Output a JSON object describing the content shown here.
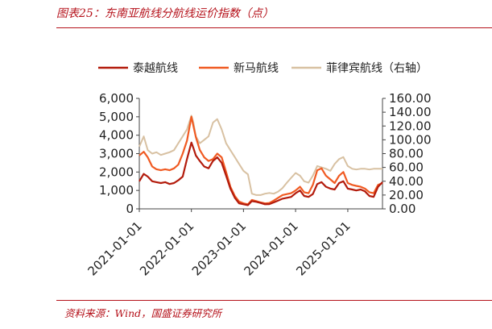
{
  "figure": {
    "title": "图表25：东南亚航线分航线运价指数（点）",
    "source": "资料来源：Wind，国盛证券研究所"
  },
  "chart_data": {
    "type": "line",
    "x_tick_labels": [
      "2021-01-01",
      "2022-01-01",
      "2023-01-01",
      "2024-01-01",
      "2025-01-01"
    ],
    "xlim": [
      "2021-01-01",
      "2025-09-01"
    ],
    "ylim_left": [
      0,
      6000
    ],
    "yticks_left": [
      "6,000",
      "5,000",
      "4,000",
      "3,000",
      "2,000",
      "1,000",
      "0"
    ],
    "ylim_right": [
      0,
      160
    ],
    "yticks_right": [
      "160.00",
      "140.00",
      "120.00",
      "100.00",
      "80.00",
      "60.00",
      "40.00",
      "20.00",
      "0.00"
    ],
    "legend_position": "top",
    "grid": false,
    "series": [
      {
        "name": "泰越航线",
        "axis": "left",
        "color": "#b31b0c",
        "points": [
          [
            "2021-01-01",
            1500
          ],
          [
            "2021-02-01",
            1900
          ],
          [
            "2021-03-01",
            1750
          ],
          [
            "2021-04-01",
            1500
          ],
          [
            "2021-05-01",
            1450
          ],
          [
            "2021-06-01",
            1400
          ],
          [
            "2021-07-01",
            1450
          ],
          [
            "2021-08-01",
            1350
          ],
          [
            "2021-09-01",
            1400
          ],
          [
            "2021-10-01",
            1550
          ],
          [
            "2021-11-01",
            1750
          ],
          [
            "2021-12-01",
            2700
          ],
          [
            "2022-01-01",
            3600
          ],
          [
            "2022-01-15",
            3300
          ],
          [
            "2022-02-01",
            2900
          ],
          [
            "2022-03-01",
            2600
          ],
          [
            "2022-04-01",
            2300
          ],
          [
            "2022-05-01",
            2200
          ],
          [
            "2022-06-01",
            2600
          ],
          [
            "2022-07-01",
            2800
          ],
          [
            "2022-08-01",
            2500
          ],
          [
            "2022-09-01",
            1800
          ],
          [
            "2022-10-01",
            1100
          ],
          [
            "2022-11-01",
            600
          ],
          [
            "2022-12-01",
            300
          ],
          [
            "2023-01-01",
            250
          ],
          [
            "2023-02-01",
            200
          ],
          [
            "2023-03-01",
            420
          ],
          [
            "2023-04-01",
            380
          ],
          [
            "2023-05-01",
            320
          ],
          [
            "2023-06-01",
            250
          ],
          [
            "2023-07-01",
            260
          ],
          [
            "2023-08-01",
            350
          ],
          [
            "2023-09-01",
            450
          ],
          [
            "2023-10-01",
            550
          ],
          [
            "2023-11-01",
            600
          ],
          [
            "2023-12-01",
            650
          ],
          [
            "2024-01-01",
            850
          ],
          [
            "2024-02-01",
            1000
          ],
          [
            "2024-03-01",
            700
          ],
          [
            "2024-04-01",
            650
          ],
          [
            "2024-05-01",
            800
          ],
          [
            "2024-06-01",
            1350
          ],
          [
            "2024-07-01",
            1450
          ],
          [
            "2024-08-01",
            1200
          ],
          [
            "2024-09-01",
            1100
          ],
          [
            "2024-10-01",
            1050
          ],
          [
            "2024-11-01",
            1400
          ],
          [
            "2024-12-01",
            1500
          ],
          [
            "2025-01-01",
            1100
          ],
          [
            "2025-02-01",
            1050
          ],
          [
            "2025-03-01",
            1000
          ],
          [
            "2025-04-01",
            1050
          ],
          [
            "2025-05-01",
            950
          ],
          [
            "2025-06-01",
            700
          ],
          [
            "2025-07-01",
            650
          ],
          [
            "2025-08-01",
            1200
          ],
          [
            "2025-09-01",
            1450
          ]
        ]
      },
      {
        "name": "新马航线",
        "axis": "left",
        "color": "#f05a22",
        "points": [
          [
            "2021-01-01",
            2900
          ],
          [
            "2021-02-01",
            3100
          ],
          [
            "2021-03-01",
            2800
          ],
          [
            "2021-04-01",
            2300
          ],
          [
            "2021-05-01",
            2150
          ],
          [
            "2021-06-01",
            2100
          ],
          [
            "2021-07-01",
            2150
          ],
          [
            "2021-08-01",
            2100
          ],
          [
            "2021-09-01",
            2200
          ],
          [
            "2021-10-01",
            2400
          ],
          [
            "2021-11-01",
            3000
          ],
          [
            "2021-12-01",
            3700
          ],
          [
            "2022-01-01",
            5000
          ],
          [
            "2022-01-15",
            4500
          ],
          [
            "2022-02-01",
            3900
          ],
          [
            "2022-03-01",
            3200
          ],
          [
            "2022-04-01",
            2800
          ],
          [
            "2022-05-01",
            2600
          ],
          [
            "2022-06-01",
            2700
          ],
          [
            "2022-07-01",
            3000
          ],
          [
            "2022-08-01",
            2800
          ],
          [
            "2022-09-01",
            2000
          ],
          [
            "2022-10-01",
            1200
          ],
          [
            "2022-11-01",
            700
          ],
          [
            "2022-12-01",
            400
          ],
          [
            "2023-01-01",
            300
          ],
          [
            "2023-02-01",
            250
          ],
          [
            "2023-03-01",
            480
          ],
          [
            "2023-04-01",
            420
          ],
          [
            "2023-05-01",
            350
          ],
          [
            "2023-06-01",
            300
          ],
          [
            "2023-07-01",
            320
          ],
          [
            "2023-08-01",
            450
          ],
          [
            "2023-09-01",
            600
          ],
          [
            "2023-10-01",
            750
          ],
          [
            "2023-11-01",
            800
          ],
          [
            "2023-12-01",
            850
          ],
          [
            "2024-01-01",
            1000
          ],
          [
            "2024-02-01",
            1200
          ],
          [
            "2024-03-01",
            900
          ],
          [
            "2024-04-01",
            850
          ],
          [
            "2024-05-01",
            1300
          ],
          [
            "2024-06-01",
            2100
          ],
          [
            "2024-07-01",
            2200
          ],
          [
            "2024-08-01",
            1800
          ],
          [
            "2024-09-01",
            1600
          ],
          [
            "2024-10-01",
            1400
          ],
          [
            "2024-11-01",
            1800
          ],
          [
            "2024-12-01",
            2000
          ],
          [
            "2025-01-01",
            1400
          ],
          [
            "2025-02-01",
            1300
          ],
          [
            "2025-03-01",
            1250
          ],
          [
            "2025-04-01",
            1200
          ],
          [
            "2025-05-01",
            1100
          ],
          [
            "2025-06-01",
            900
          ],
          [
            "2025-07-01",
            850
          ],
          [
            "2025-08-01",
            1300
          ],
          [
            "2025-09-01",
            1400
          ]
        ]
      },
      {
        "name": "菲律宾航线（右轴）",
        "axis": "right",
        "color": "#d8c1a2",
        "points": [
          [
            "2021-01-01",
            90
          ],
          [
            "2021-02-01",
            105
          ],
          [
            "2021-03-01",
            85
          ],
          [
            "2021-04-01",
            80
          ],
          [
            "2021-05-01",
            82
          ],
          [
            "2021-06-01",
            78
          ],
          [
            "2021-07-01",
            80
          ],
          [
            "2021-08-01",
            82
          ],
          [
            "2021-09-01",
            85
          ],
          [
            "2021-10-01",
            95
          ],
          [
            "2021-11-01",
            105
          ],
          [
            "2021-12-01",
            115
          ],
          [
            "2022-01-01",
            135
          ],
          [
            "2022-01-15",
            125
          ],
          [
            "2022-02-01",
            105
          ],
          [
            "2022-03-01",
            95
          ],
          [
            "2022-04-01",
            100
          ],
          [
            "2022-05-01",
            105
          ],
          [
            "2022-06-01",
            125
          ],
          [
            "2022-07-01",
            130
          ],
          [
            "2022-08-01",
            115
          ],
          [
            "2022-09-01",
            95
          ],
          [
            "2022-10-01",
            85
          ],
          [
            "2022-11-01",
            75
          ],
          [
            "2022-12-01",
            65
          ],
          [
            "2023-01-01",
            55
          ],
          [
            "2023-02-01",
            50
          ],
          [
            "2023-03-01",
            22
          ],
          [
            "2023-04-01",
            20
          ],
          [
            "2023-05-01",
            20
          ],
          [
            "2023-06-01",
            22
          ],
          [
            "2023-07-01",
            23
          ],
          [
            "2023-08-01",
            22
          ],
          [
            "2023-09-01",
            25
          ],
          [
            "2023-10-01",
            30
          ],
          [
            "2023-11-01",
            38
          ],
          [
            "2023-12-01",
            45
          ],
          [
            "2024-01-01",
            52
          ],
          [
            "2024-02-01",
            48
          ],
          [
            "2024-03-01",
            40
          ],
          [
            "2024-04-01",
            38
          ],
          [
            "2024-05-01",
            48
          ],
          [
            "2024-06-01",
            62
          ],
          [
            "2024-07-01",
            60
          ],
          [
            "2024-08-01",
            58
          ],
          [
            "2024-09-01",
            55
          ],
          [
            "2024-10-01",
            65
          ],
          [
            "2024-11-01",
            72
          ],
          [
            "2024-12-01",
            75
          ],
          [
            "2025-01-01",
            62
          ],
          [
            "2025-02-01",
            58
          ],
          [
            "2025-03-01",
            57
          ],
          [
            "2025-04-01",
            58
          ],
          [
            "2025-05-01",
            58
          ],
          [
            "2025-06-01",
            57
          ],
          [
            "2025-07-01",
            58
          ],
          [
            "2025-08-01",
            58
          ],
          [
            "2025-09-01",
            58
          ]
        ]
      }
    ]
  }
}
